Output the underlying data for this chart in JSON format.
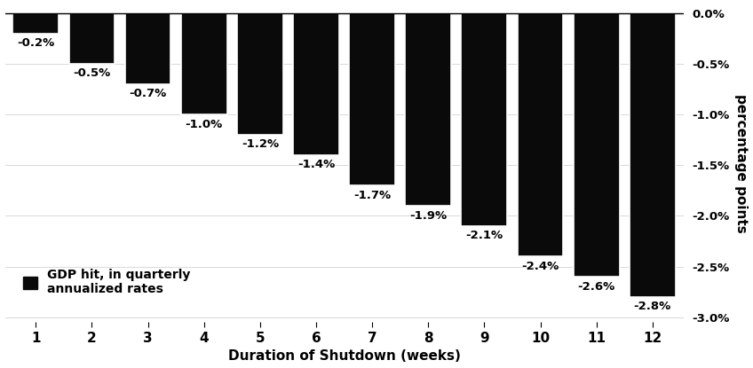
{
  "weeks": [
    1,
    2,
    3,
    4,
    5,
    6,
    7,
    8,
    9,
    10,
    11,
    12
  ],
  "values": [
    -0.2,
    -0.5,
    -0.7,
    -1.0,
    -1.2,
    -1.4,
    -1.7,
    -1.9,
    -2.1,
    -2.4,
    -2.6,
    -2.8
  ],
  "labels": [
    "-0.2%",
    "-0.5%",
    "-0.7%",
    "-1.0%",
    "-1.2%",
    "-1.4%",
    "-1.7%",
    "-1.9%",
    "-2.1%",
    "-2.4%",
    "-2.6%",
    "-2.8%"
  ],
  "bar_color": "#0a0a0a",
  "background_color": "#ffffff",
  "xlabel": "Duration of Shutdown (weeks)",
  "ylabel": "percentage points",
  "legend_label": "GDP hit, in quarterly\nannualized rates",
  "ylim": [
    -3.05,
    0.08
  ],
  "yticks": [
    0.0,
    -0.5,
    -1.0,
    -1.5,
    -2.0,
    -2.5,
    -3.0
  ],
  "ytick_labels": [
    "0.0%",
    "-0.5%",
    "-1.0%",
    "-1.5%",
    "-2.0%",
    "-2.5%",
    "-3.0%"
  ],
  "bar_width": 0.82,
  "label_fontsize": 9.5,
  "axis_fontsize": 11,
  "legend_fontsize": 10,
  "xlim": [
    0.45,
    12.55
  ]
}
